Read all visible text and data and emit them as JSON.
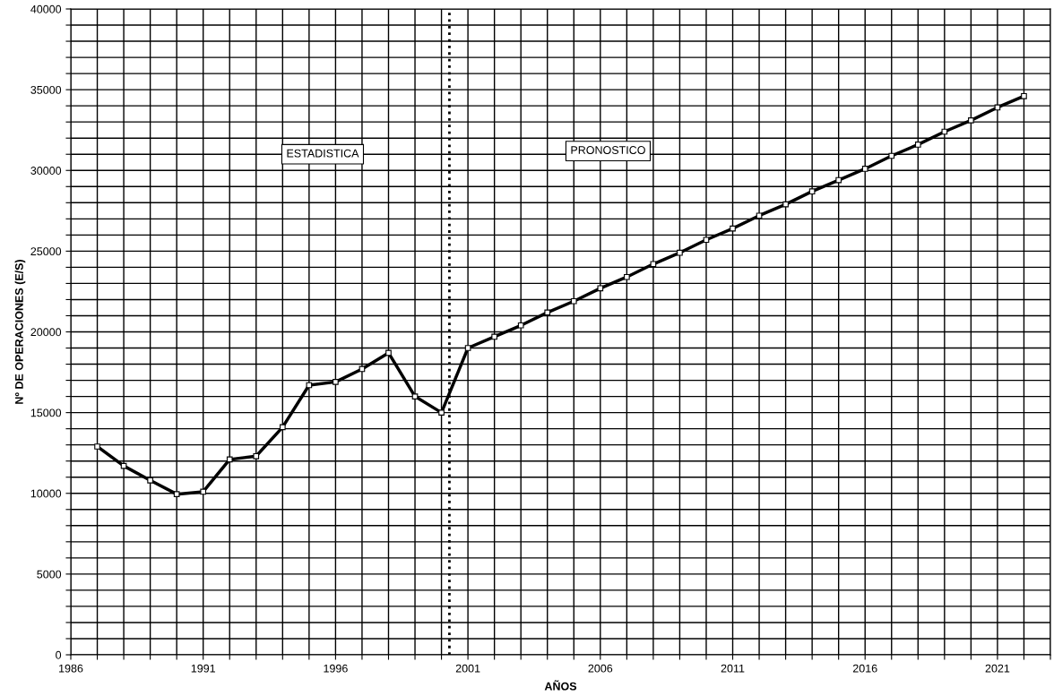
{
  "chart_data": {
    "type": "line",
    "xlabel": "AÑOS",
    "ylabel": "Nº DE OPERACIONES (E/S)",
    "x": [
      1987,
      1988,
      1989,
      1990,
      1991,
      1992,
      1993,
      1994,
      1995,
      1996,
      1997,
      1998,
      1999,
      2000,
      2001,
      2002,
      2003,
      2004,
      2005,
      2006,
      2007,
      2008,
      2009,
      2010,
      2011,
      2012,
      2013,
      2014,
      2015,
      2016,
      2017,
      2018,
      2019,
      2020,
      2021,
      2022
    ],
    "series": [
      {
        "color": "#000000",
        "values": [
          12900,
          11700,
          10800,
          9950,
          10100,
          12100,
          12300,
          14100,
          16700,
          16900,
          17700,
          18700,
          16000,
          15000,
          19000,
          19700,
          20400,
          21200,
          21900,
          22700,
          23400,
          24200,
          24900,
          25700,
          26400,
          27200,
          27900,
          28700,
          29400,
          30100,
          30900,
          31600,
          32400,
          33100,
          33900,
          34600
        ]
      }
    ],
    "xlim": [
      1986,
      2023
    ],
    "xticks": [
      1986,
      {
        "value": 1987,
        "label": null
      },
      {
        "value": 1988,
        "label": null
      },
      {
        "value": 1989,
        "label": null
      },
      {
        "value": 1990,
        "label": null
      },
      1991,
      {
        "value": 1992,
        "label": null
      },
      {
        "value": 1993,
        "label": null
      },
      {
        "value": 1994,
        "label": null
      },
      {
        "value": 1995,
        "label": null
      },
      1996,
      {
        "value": 1997,
        "label": null
      },
      {
        "value": 1998,
        "label": null
      },
      {
        "value": 1999,
        "label": null
      },
      {
        "value": 2000,
        "label": null
      },
      2001,
      {
        "value": 2002,
        "label": null
      },
      {
        "value": 2003,
        "label": null
      },
      {
        "value": 2004,
        "label": null
      },
      {
        "value": 2005,
        "label": null
      },
      2006,
      {
        "value": 2007,
        "label": null
      },
      {
        "value": 2008,
        "label": null
      },
      {
        "value": 2009,
        "label": null
      },
      {
        "value": 2010,
        "label": null
      },
      2011,
      {
        "value": 2012,
        "label": null
      },
      {
        "value": 2013,
        "label": null
      },
      {
        "value": 2014,
        "label": null
      },
      {
        "value": 2015,
        "label": null
      },
      2016,
      {
        "value": 2017,
        "label": null
      },
      {
        "value": 2018,
        "label": null
      },
      {
        "value": 2019,
        "label": null
      },
      {
        "value": 2020,
        "label": null
      },
      2021,
      {
        "value": 2022,
        "label": null
      },
      {
        "value": 2023,
        "label": null
      }
    ],
    "ylim": [
      0,
      40000
    ],
    "yticks": [
      0,
      {
        "value": 1000,
        "label": null
      },
      {
        "value": 2000,
        "label": null
      },
      {
        "value": 3000,
        "label": null
      },
      {
        "value": 4000,
        "label": null
      },
      5000,
      {
        "value": 6000,
        "label": null
      },
      {
        "value": 7000,
        "label": null
      },
      {
        "value": 8000,
        "label": null
      },
      {
        "value": 9000,
        "label": null
      },
      10000,
      {
        "value": 11000,
        "label": null
      },
      {
        "value": 12000,
        "label": null
      },
      {
        "value": 13000,
        "label": null
      },
      {
        "value": 14000,
        "label": null
      },
      15000,
      {
        "value": 16000,
        "label": null
      },
      {
        "value": 17000,
        "label": null
      },
      {
        "value": 18000,
        "label": null
      },
      {
        "value": 19000,
        "label": null
      },
      20000,
      {
        "value": 21000,
        "label": null
      },
      {
        "value": 22000,
        "label": null
      },
      {
        "value": 23000,
        "label": null
      },
      {
        "value": 24000,
        "label": null
      },
      25000,
      {
        "value": 26000,
        "label": null
      },
      {
        "value": 27000,
        "label": null
      },
      {
        "value": 28000,
        "label": null
      },
      {
        "value": 29000,
        "label": null
      },
      30000,
      {
        "value": 31000,
        "label": null
      },
      {
        "value": 32000,
        "label": null
      },
      {
        "value": 33000,
        "label": null
      },
      {
        "value": 34000,
        "label": null
      },
      35000,
      {
        "value": 36000,
        "label": null
      },
      {
        "value": 37000,
        "label": null
      },
      {
        "value": 38000,
        "label": null
      },
      {
        "value": 39000,
        "label": null
      },
      40000
    ],
    "ref_lines": [
      {
        "axis": "x",
        "value": 2000.3,
        "color": "#000000",
        "line_style": "dotted"
      }
    ],
    "annotations": [
      "ESTADISTICA",
      "PRONOSTICO"
    ],
    "grid": true,
    "marker": "square",
    "line_style": "solid"
  }
}
